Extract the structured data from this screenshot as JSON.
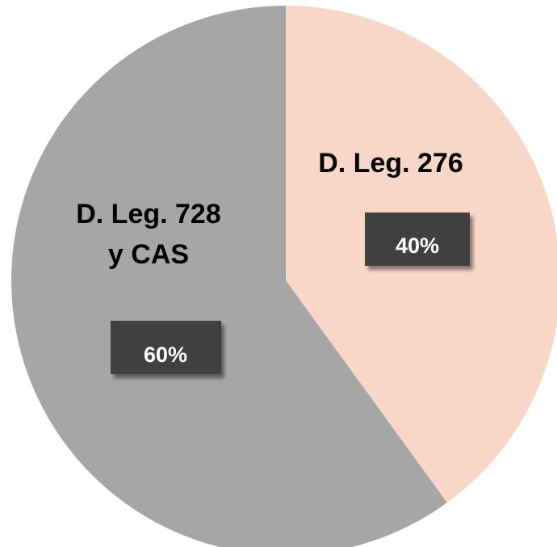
{
  "chart_data": {
    "type": "pie",
    "start_angle_deg": 0,
    "direction": "clockwise",
    "slices": [
      {
        "label": [
          "D. Leg. 276"
        ],
        "value": 40,
        "data_label": "40%",
        "color": "#f8d7c9"
      },
      {
        "label": [
          "D. Leg. 728",
          "y CAS"
        ],
        "value": 60,
        "data_label": "60%",
        "color": "#a6a6a6"
      }
    ],
    "data_label_box_color": "#404040",
    "data_label_text_color": "#ffffff"
  }
}
